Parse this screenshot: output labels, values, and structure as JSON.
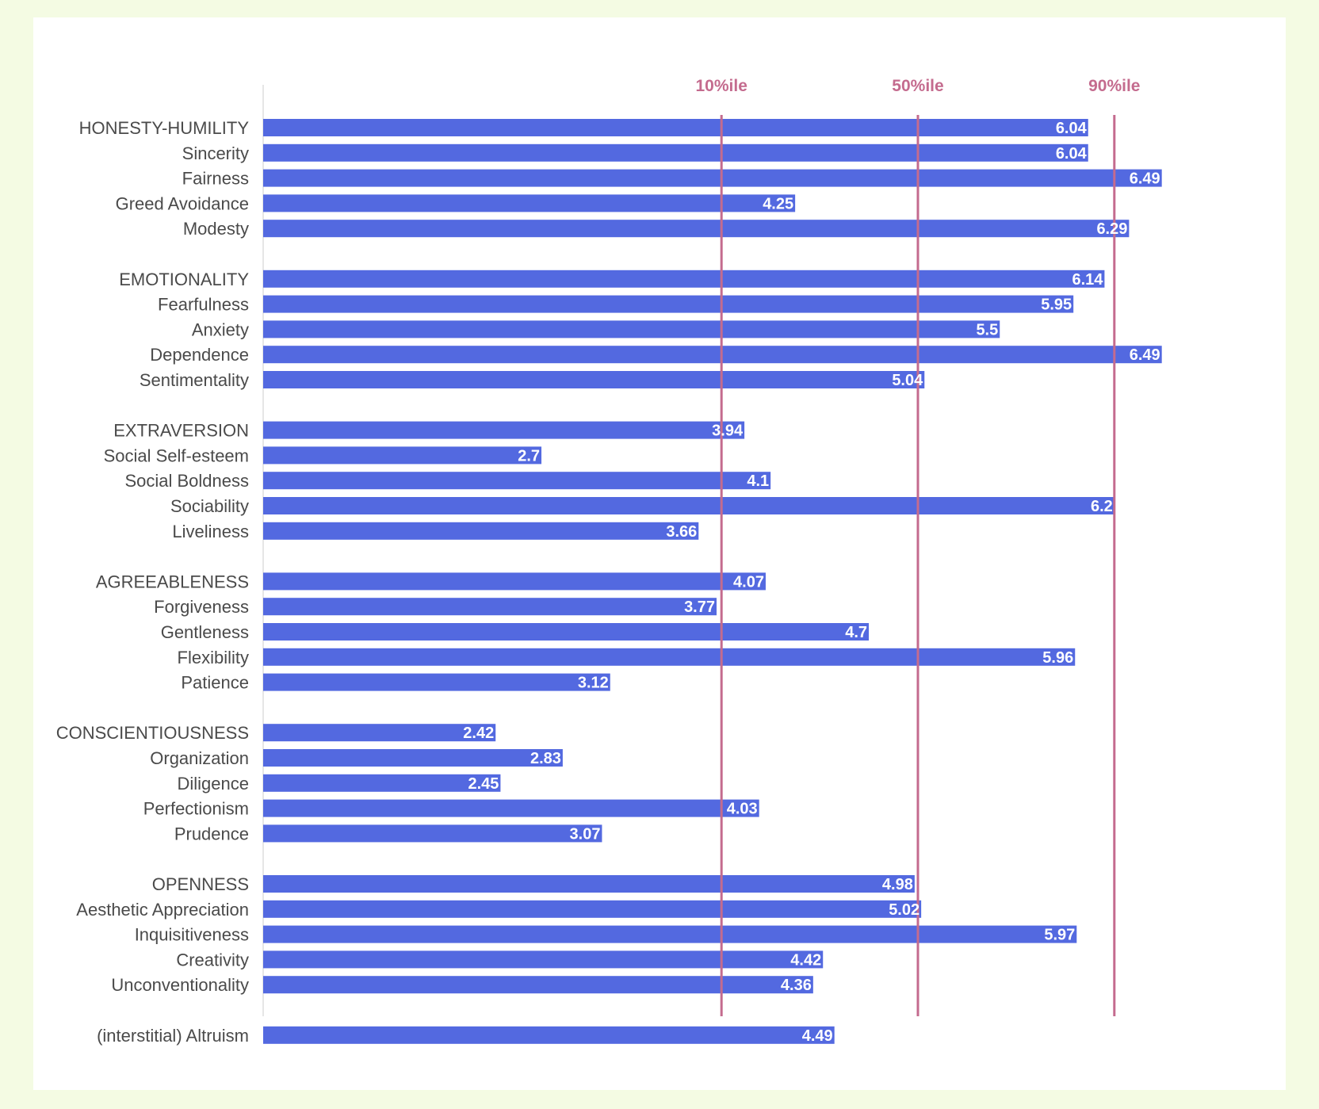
{
  "chart_data": {
    "type": "bar",
    "orientation": "horizontal",
    "title": "",
    "xlabel": "",
    "ylabel": "",
    "xlim": [
      0,
      7
    ],
    "bar_color": "#5369e0",
    "reference_color": "#c46b8e",
    "grid": false,
    "reference_lines": [
      {
        "label": "10%ile",
        "value": 3.8
      },
      {
        "label": "50%ile",
        "value": 5.0
      },
      {
        "label": "90%ile",
        "value": 6.2
      }
    ],
    "groups": [
      {
        "items": [
          {
            "label": "HONESTY-HUMILITY",
            "value": 6.04
          },
          {
            "label": "Sincerity",
            "value": 6.04
          },
          {
            "label": "Fairness",
            "value": 6.49
          },
          {
            "label": "Greed Avoidance",
            "value": 4.25
          },
          {
            "label": "Modesty",
            "value": 6.29
          }
        ]
      },
      {
        "items": [
          {
            "label": "EMOTIONALITY",
            "value": 6.14
          },
          {
            "label": "Fearfulness",
            "value": 5.95
          },
          {
            "label": "Anxiety",
            "value": 5.5
          },
          {
            "label": "Dependence",
            "value": 6.49
          },
          {
            "label": "Sentimentality",
            "value": 5.04
          }
        ]
      },
      {
        "items": [
          {
            "label": "EXTRAVERSION",
            "value": 3.94
          },
          {
            "label": "Social Self-esteem",
            "value": 2.7
          },
          {
            "label": "Social Boldness",
            "value": 4.1
          },
          {
            "label": "Sociability",
            "value": 6.2
          },
          {
            "label": "Liveliness",
            "value": 3.66
          }
        ]
      },
      {
        "items": [
          {
            "label": "AGREEABLENESS",
            "value": 4.07
          },
          {
            "label": "Forgiveness",
            "value": 3.77
          },
          {
            "label": "Gentleness",
            "value": 4.7
          },
          {
            "label": "Flexibility",
            "value": 5.96
          },
          {
            "label": "Patience",
            "value": 3.12
          }
        ]
      },
      {
        "items": [
          {
            "label": "CONSCIENTIOUSNESS",
            "value": 2.42
          },
          {
            "label": "Organization",
            "value": 2.83
          },
          {
            "label": "Diligence",
            "value": 2.45
          },
          {
            "label": "Perfectionism",
            "value": 4.03
          },
          {
            "label": "Prudence",
            "value": 3.07
          }
        ]
      },
      {
        "items": [
          {
            "label": "OPENNESS",
            "value": 4.98
          },
          {
            "label": "Aesthetic Appreciation",
            "value": 5.02
          },
          {
            "label": "Inquisitiveness",
            "value": 5.97
          },
          {
            "label": "Creativity",
            "value": 4.42
          },
          {
            "label": "Unconventionality",
            "value": 4.36
          }
        ]
      },
      {
        "items": [
          {
            "label": "(interstitial) Altruism",
            "value": 4.49
          }
        ]
      }
    ]
  }
}
